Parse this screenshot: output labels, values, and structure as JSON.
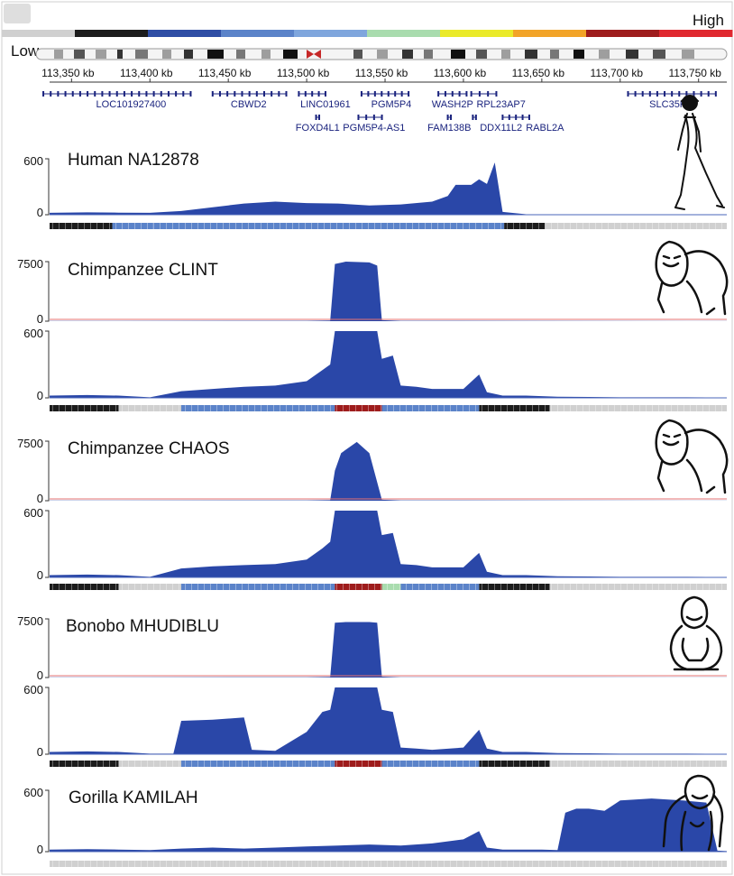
{
  "legend": {
    "low_label": "Low",
    "high_label": "High",
    "scale_colors": [
      "#d0d0d0",
      "#1c1c1c",
      "#2f4ea5",
      "#5b83c9",
      "#7fa6dd",
      "#a9dcae",
      "#eaea2a",
      "#f2a428",
      "#9e1c1c",
      "#e0282f"
    ]
  },
  "colors": {
    "coverage": "#2a47a8",
    "ideogram_centromere": "#c62828",
    "guide_line": "#e57373",
    "gene_text": "#1a237e"
  },
  "axis": {
    "unit": "kb",
    "ticks": [
      {
        "pos": 113350,
        "label": "113,350 kb"
      },
      {
        "pos": 113400,
        "label": "113,400 kb"
      },
      {
        "pos": 113450,
        "label": "113,450 kb"
      },
      {
        "pos": 113500,
        "label": "113,500 kb"
      },
      {
        "pos": 113550,
        "label": "113,550 kb"
      },
      {
        "pos": 113600,
        "label": "113,600 kb"
      },
      {
        "pos": 113650,
        "label": "113,650 kb"
      },
      {
        "pos": 113700,
        "label": "113,700 kb"
      },
      {
        "pos": 113750,
        "label": "113,750 kb"
      }
    ]
  },
  "genes": [
    {
      "name": "LOC101927400",
      "start": 113332,
      "end": 113426,
      "label_pos": 113388,
      "row": 0
    },
    {
      "name": "CBWD2",
      "start": 113440,
      "end": 113487,
      "label_pos": 113463,
      "row": 0
    },
    {
      "name": "LINC01961",
      "start": 113495,
      "end": 113512,
      "label_pos": 113512,
      "row": 0
    },
    {
      "name": "PGM5P4",
      "start": 113535,
      "end": 113565,
      "label_pos": 113554,
      "row": 0
    },
    {
      "name": "WASH2P",
      "start": 113584,
      "end": 113602,
      "label_pos": 113593,
      "row": 0
    },
    {
      "name": "RPL23AP7",
      "start": 113605,
      "end": 113621,
      "label_pos": 113624,
      "row": 0
    },
    {
      "name": "SLC35F5",
      "start": 113705,
      "end": 113761,
      "label_pos": 113732,
      "row": 0
    },
    {
      "name": "FOXD4L1",
      "start": 113506,
      "end": 113508,
      "label_pos": 113507,
      "row": 1
    },
    {
      "name": "PGM5P4-AS1",
      "start": 113533,
      "end": 113548,
      "label_pos": 113543,
      "row": 1
    },
    {
      "name": "FAM138B",
      "start": 113590,
      "end": 113592,
      "label_pos": 113591,
      "row": 1
    },
    {
      "name": "DDX11L2",
      "start": 113606,
      "end": 113608,
      "label_pos": 113624,
      "row": 1
    },
    {
      "name": "RABL2A",
      "start": 113625,
      "end": 113642,
      "label_pos": 113652,
      "row": 1
    }
  ],
  "chart_data": {
    "type": "area",
    "x_unit": "kb",
    "x_range": [
      113336,
      113768
    ],
    "tracks": [
      {
        "name": "Human NA12878",
        "panels": [
          {
            "y_range": [
              0,
              600
            ],
            "y_ticks": [
              "600",
              "0"
            ],
            "x": [
              113336,
              113360,
              113380,
              113400,
              113420,
              113440,
              113460,
              113480,
              113500,
              113520,
              113540,
              113560,
              113580,
              113590,
              113595,
              113605,
              113610,
              113615,
              113620,
              113625,
              113640,
              113660,
              113680,
              113700,
              113720,
              113740,
              113768
            ],
            "y": [
              20,
              25,
              22,
              20,
              40,
              80,
              120,
              140,
              125,
              120,
              100,
              110,
              140,
              200,
              320,
              320,
              380,
              330,
              560,
              30,
              5,
              3,
              3,
              3,
              3,
              3,
              3
            ]
          }
        ],
        "copy_number_bar": [
          {
            "start": 113336,
            "end": 113376,
            "color": "#1c1c1c"
          },
          {
            "start": 113376,
            "end": 113402,
            "color": "#5b83c9"
          },
          {
            "start": 113402,
            "end": 113626,
            "color": "#5b83c9"
          },
          {
            "start": 113626,
            "end": 113652,
            "color": "#1c1c1c"
          },
          {
            "start": 113652,
            "end": 113768,
            "color": "#d0d0d0"
          }
        ]
      },
      {
        "name": "Chimpanzee CLINT",
        "panels": [
          {
            "y_range": [
              0,
              7500
            ],
            "y_ticks": [
              "7500",
              "0"
            ],
            "x": [
              113336,
              113500,
              113515,
              113518,
              113525,
              113540,
              113545,
              113548,
              113560,
              113768
            ],
            "y": [
              20,
              50,
              80,
              7200,
              7600,
              7400,
              7000,
              120,
              40,
              10
            ]
          },
          {
            "y_range": [
              0,
              600
            ],
            "y_ticks": [
              "600",
              "0"
            ],
            "x": [
              113336,
              113360,
              113380,
              113400,
              113420,
              113440,
              113460,
              113480,
              113500,
              113510,
              113515,
              113518,
              113545,
              113548,
              113555,
              113560,
              113570,
              113580,
              113600,
              113610,
              113615,
              113625,
              113640,
              113660,
              113680,
              113700,
              113720,
              113740,
              113768
            ],
            "y": [
              20,
              25,
              20,
              5,
              60,
              80,
              100,
              110,
              150,
              250,
              300,
              600,
              600,
              350,
              380,
              110,
              100,
              80,
              80,
              210,
              50,
              20,
              20,
              10,
              8,
              5,
              5,
              5,
              3
            ]
          }
        ],
        "copy_number_bar": [
          {
            "start": 113336,
            "end": 113380,
            "color": "#1c1c1c"
          },
          {
            "start": 113380,
            "end": 113420,
            "color": "#d0d0d0"
          },
          {
            "start": 113420,
            "end": 113518,
            "color": "#5b83c9"
          },
          {
            "start": 113518,
            "end": 113548,
            "color": "#9e1c1c"
          },
          {
            "start": 113548,
            "end": 113610,
            "color": "#5b83c9"
          },
          {
            "start": 113610,
            "end": 113655,
            "color": "#1c1c1c"
          },
          {
            "start": 113655,
            "end": 113768,
            "color": "#d0d0d0"
          }
        ]
      },
      {
        "name": "Chimpanzee CHAOS",
        "panels": [
          {
            "y_range": [
              0,
              7500
            ],
            "y_ticks": [
              "7500",
              "0"
            ],
            "x": [
              113336,
              113500,
              113515,
              113518,
              113522,
              113532,
              113540,
              113548,
              113560,
              113768
            ],
            "y": [
              20,
              50,
              80,
              3800,
              6000,
              7400,
              6000,
              120,
              40,
              10
            ]
          },
          {
            "y_range": [
              0,
              600
            ],
            "y_ticks": [
              "600",
              "0"
            ],
            "x": [
              113336,
              113360,
              113380,
              113400,
              113420,
              113440,
              113460,
              113480,
              113500,
              113510,
              113515,
              113518,
              113545,
              113548,
              113555,
              113560,
              113570,
              113580,
              113600,
              113610,
              113615,
              113625,
              113640,
              113660,
              113680,
              113700,
              113720,
              113740,
              113768
            ],
            "y": [
              20,
              25,
              20,
              5,
              80,
              100,
              110,
              120,
              160,
              260,
              320,
              600,
              600,
              380,
              400,
              120,
              110,
              90,
              90,
              220,
              50,
              20,
              20,
              10,
              8,
              5,
              5,
              5,
              3
            ]
          }
        ],
        "copy_number_bar": [
          {
            "start": 113336,
            "end": 113380,
            "color": "#1c1c1c"
          },
          {
            "start": 113380,
            "end": 113420,
            "color": "#d0d0d0"
          },
          {
            "start": 113420,
            "end": 113518,
            "color": "#5b83c9"
          },
          {
            "start": 113518,
            "end": 113548,
            "color": "#9e1c1c"
          },
          {
            "start": 113548,
            "end": 113560,
            "color": "#a9dcae"
          },
          {
            "start": 113560,
            "end": 113610,
            "color": "#5b83c9"
          },
          {
            "start": 113610,
            "end": 113655,
            "color": "#1c1c1c"
          },
          {
            "start": 113655,
            "end": 113768,
            "color": "#d0d0d0"
          }
        ]
      },
      {
        "name": "Bonobo MHUDIBLU",
        "panels": [
          {
            "y_range": [
              0,
              7500
            ],
            "y_ticks": [
              "7500",
              "0"
            ],
            "x": [
              113336,
              113500,
              113515,
              113518,
              113525,
              113540,
              113545,
              113548,
              113560,
              113768
            ],
            "y": [
              20,
              50,
              80,
              7000,
              7100,
              7100,
              7000,
              120,
              40,
              10
            ]
          },
          {
            "y_range": [
              0,
              600
            ],
            "y_ticks": [
              "600",
              "0"
            ],
            "x": [
              113336,
              113360,
              113380,
              113400,
              113415,
              113420,
              113440,
              113460,
              113465,
              113480,
              113500,
              113510,
              113515,
              113518,
              113545,
              113548,
              113555,
              113560,
              113570,
              113580,
              113600,
              113610,
              113615,
              113625,
              113640,
              113660,
              113680,
              113700,
              113720,
              113740,
              113768
            ],
            "y": [
              20,
              25,
              20,
              5,
              5,
              300,
              310,
              330,
              40,
              30,
              200,
              380,
              400,
              600,
              600,
              400,
              380,
              60,
              50,
              40,
              60,
              220,
              50,
              20,
              20,
              10,
              8,
              5,
              5,
              5,
              3
            ]
          }
        ],
        "copy_number_bar": [
          {
            "start": 113336,
            "end": 113380,
            "color": "#1c1c1c"
          },
          {
            "start": 113380,
            "end": 113420,
            "color": "#d0d0d0"
          },
          {
            "start": 113420,
            "end": 113518,
            "color": "#5b83c9"
          },
          {
            "start": 113518,
            "end": 113548,
            "color": "#9e1c1c"
          },
          {
            "start": 113548,
            "end": 113610,
            "color": "#5b83c9"
          },
          {
            "start": 113610,
            "end": 113655,
            "color": "#1c1c1c"
          },
          {
            "start": 113655,
            "end": 113768,
            "color": "#d0d0d0"
          }
        ]
      },
      {
        "name": "Gorilla KAMILAH",
        "panels": [
          {
            "y_range": [
              0,
              600
            ],
            "y_ticks": [
              "600",
              "0"
            ],
            "x": [
              113336,
              113360,
              113380,
              113400,
              113420,
              113440,
              113460,
              113480,
              113500,
              113520,
              113540,
              113560,
              113580,
              113600,
              113610,
              113615,
              113625,
              113640,
              113650,
              113660,
              113665,
              113672,
              113680,
              113690,
              113700,
              113720,
              113740,
              113755,
              113762,
              113768
            ],
            "y": [
              20,
              25,
              20,
              15,
              30,
              40,
              30,
              40,
              50,
              60,
              70,
              60,
              80,
              120,
              200,
              40,
              20,
              20,
              20,
              15,
              380,
              420,
              420,
              400,
              500,
              520,
              500,
              480,
              10,
              5
            ]
          }
        ],
        "copy_number_bar": [
          {
            "start": 113336,
            "end": 113768,
            "color": "#d0d0d0"
          }
        ]
      }
    ]
  }
}
